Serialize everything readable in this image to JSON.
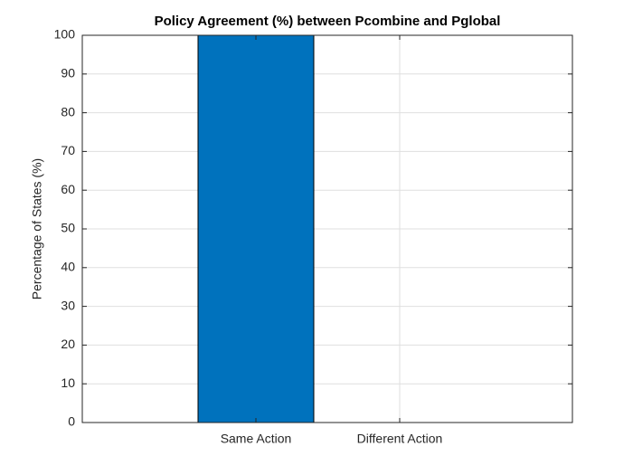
{
  "chart_data": {
    "type": "bar",
    "title": "Policy Agreement (%) between Pcombine and Pglobal",
    "y_label": "Percentage of States (%)",
    "categories": [
      "Same Action",
      "Different Action"
    ],
    "values": [
      100,
      0
    ],
    "color": "#0072bd",
    "ylim": [
      0,
      100
    ],
    "yticks": [
      0,
      10,
      20,
      30,
      40,
      50,
      60,
      70,
      80,
      90,
      100
    ],
    "grid": true
  }
}
